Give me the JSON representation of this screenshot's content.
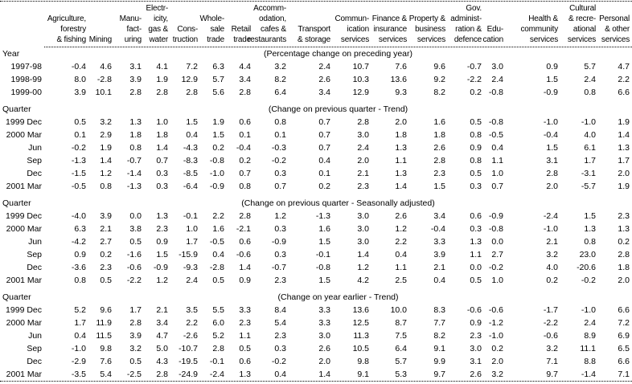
{
  "colors": {
    "text": "#000000",
    "background": "#ffffff"
  },
  "table": {
    "columns": [
      {
        "id": "period",
        "header_lines": []
      },
      {
        "id": "agriculture-forestry-fishing",
        "header_lines": [
          "Agriculture,",
          "forestry",
          "& fishing"
        ]
      },
      {
        "id": "mining",
        "header_lines": [
          "Mining"
        ]
      },
      {
        "id": "manufacturing",
        "header_lines": [
          "Manu-",
          "fact-",
          "uring"
        ]
      },
      {
        "id": "electricity-gas-water",
        "header_lines": [
          "Electr-",
          "icity,",
          "gas &",
          "water"
        ]
      },
      {
        "id": "construction",
        "header_lines": [
          "Cons-",
          "truction"
        ]
      },
      {
        "id": "wholesale-trade",
        "header_lines": [
          "Whole-",
          "sale",
          "trade"
        ]
      },
      {
        "id": "retail-trade",
        "header_lines": [
          "Retail",
          "trade"
        ]
      },
      {
        "id": "accommodation-cafes-restaurants",
        "header_lines": [
          "Accomm-",
          "odation,",
          "cafes &",
          "restaurants"
        ]
      },
      {
        "id": "transport-storage",
        "header_lines": [
          "Transport",
          "& storage"
        ]
      },
      {
        "id": "communication-services",
        "header_lines": [
          "Commun-",
          "ication",
          "services"
        ]
      },
      {
        "id": "finance-insurance-services",
        "header_lines": [
          "Finance &",
          "insurance",
          "services"
        ]
      },
      {
        "id": "property-business-services",
        "header_lines": [
          "Property &",
          "business",
          "services"
        ]
      },
      {
        "id": "gov-administration-defence",
        "header_lines": [
          "Gov.",
          "administ-",
          "ration &",
          "defence"
        ]
      },
      {
        "id": "education",
        "header_lines": [
          "Edu-",
          "cation"
        ]
      },
      {
        "id": "health-community-services",
        "header_lines": [
          "Health &",
          "community",
          "services"
        ]
      },
      {
        "id": "cultural-recreational-services",
        "header_lines": [
          "Cultural",
          "& recre-",
          "ational",
          "services"
        ]
      },
      {
        "id": "personal-other-services",
        "header_lines": [
          "Personal",
          "& other",
          "services"
        ]
      }
    ],
    "sections": [
      {
        "id": "percentage-change-preceding-year",
        "label": "Year",
        "caption": "(Percentage change on preceding year)",
        "rows": [
          {
            "period": "1997-98",
            "values": [
              "-0.4",
              "4.6",
              "3.1",
              "4.1",
              "7.2",
              "6.3",
              "4.4",
              "3.2",
              "2.4",
              "10.7",
              "7.6",
              "9.6",
              "-0.7",
              "3.0",
              "0.9",
              "5.7",
              "4.7"
            ]
          },
          {
            "period": "1998-99",
            "values": [
              "8.0",
              "-2.8",
              "3.9",
              "1.9",
              "12.9",
              "5.7",
              "3.4",
              "8.2",
              "2.6",
              "10.3",
              "13.6",
              "9.2",
              "-2.2",
              "2.4",
              "1.5",
              "2.4",
              "2.2"
            ]
          },
          {
            "period": "1999-00",
            "values": [
              "3.9",
              "10.1",
              "2.8",
              "2.8",
              "2.8",
              "5.6",
              "2.8",
              "6.4",
              "3.4",
              "12.9",
              "9.3",
              "8.2",
              "0.2",
              "-0.8",
              "-0.9",
              "0.8",
              "6.6"
            ]
          }
        ]
      },
      {
        "id": "change-previous-quarter-trend",
        "label": "Quarter",
        "caption": "(Change on previous quarter - Trend)",
        "rows": [
          {
            "period": "1999 Dec",
            "values": [
              "0.5",
              "3.2",
              "1.3",
              "1.0",
              "1.5",
              "1.9",
              "0.6",
              "0.8",
              "0.7",
              "2.8",
              "2.0",
              "1.6",
              "0.5",
              "-0.8",
              "-1.0",
              "-1.0",
              "1.9"
            ]
          },
          {
            "period": "2000 Mar",
            "values": [
              "0.1",
              "2.9",
              "1.8",
              "1.8",
              "0.4",
              "1.5",
              "0.1",
              "0.1",
              "0.7",
              "3.0",
              "1.8",
              "1.8",
              "0.8",
              "-0.5",
              "-0.4",
              "4.0",
              "1.4"
            ]
          },
          {
            "period": "Jun",
            "values": [
              "-0.2",
              "1.9",
              "0.8",
              "1.4",
              "-4.3",
              "0.2",
              "-0.4",
              "-0.3",
              "0.7",
              "2.4",
              "1.3",
              "2.6",
              "0.9",
              "0.4",
              "1.5",
              "6.1",
              "1.3"
            ]
          },
          {
            "period": "Sep",
            "values": [
              "-1.3",
              "1.4",
              "-0.7",
              "0.7",
              "-8.3",
              "-0.8",
              "0.2",
              "-0.2",
              "0.4",
              "2.0",
              "1.1",
              "2.8",
              "0.8",
              "1.1",
              "3.1",
              "1.7",
              "1.7"
            ]
          },
          {
            "period": "Dec",
            "values": [
              "-1.5",
              "1.2",
              "-1.4",
              "0.3",
              "-8.5",
              "-1.0",
              "0.7",
              "0.3",
              "0.1",
              "2.1",
              "1.3",
              "2.3",
              "0.5",
              "1.0",
              "2.8",
              "-3.1",
              "2.0"
            ]
          },
          {
            "period": "2001 Mar",
            "values": [
              "-0.5",
              "0.8",
              "-1.3",
              "0.3",
              "-6.4",
              "-0.9",
              "0.8",
              "0.7",
              "0.2",
              "2.3",
              "1.4",
              "1.5",
              "0.3",
              "0.7",
              "2.0",
              "-5.7",
              "1.9"
            ]
          }
        ]
      },
      {
        "id": "change-previous-quarter-seasonally-adjusted",
        "label": "Quarter",
        "caption": "(Change on previous quarter - Seasonally adjusted)",
        "rows": [
          {
            "period": "1999 Dec",
            "values": [
              "-4.0",
              "3.9",
              "0.0",
              "1.3",
              "-0.1",
              "2.2",
              "2.8",
              "1.2",
              "-1.3",
              "3.0",
              "2.6",
              "3.4",
              "0.6",
              "-0.9",
              "-2.4",
              "1.5",
              "2.3"
            ]
          },
          {
            "period": "2000 Mar",
            "values": [
              "6.3",
              "2.1",
              "3.8",
              "2.3",
              "1.0",
              "1.6",
              "-2.1",
              "0.3",
              "1.6",
              "3.0",
              "1.2",
              "-0.4",
              "0.3",
              "-0.8",
              "-1.0",
              "1.3",
              "1.3"
            ]
          },
          {
            "period": "Jun",
            "values": [
              "-4.2",
              "2.7",
              "0.5",
              "0.9",
              "1.7",
              "-0.5",
              "0.6",
              "-0.9",
              "1.5",
              "3.0",
              "2.2",
              "3.3",
              "1.3",
              "0.0",
              "2.1",
              "0.8",
              "0.2"
            ]
          },
          {
            "period": "Sep",
            "values": [
              "0.9",
              "0.2",
              "-1.6",
              "1.5",
              "-15.9",
              "0.4",
              "-0.6",
              "0.3",
              "-0.1",
              "1.4",
              "0.4",
              "3.9",
              "1.1",
              "2.7",
              "3.2",
              "23.0",
              "2.8"
            ]
          },
          {
            "period": "Dec",
            "values": [
              "-3.6",
              "2.3",
              "-0.6",
              "-0.9",
              "-9.3",
              "-2.8",
              "1.4",
              "-0.7",
              "-0.8",
              "1.2",
              "1.1",
              "2.1",
              "0.0",
              "-0.2",
              "4.0",
              "-20.6",
              "1.8"
            ]
          },
          {
            "period": "2001 Mar",
            "values": [
              "0.8",
              "0.5",
              "-2.2",
              "1.2",
              "2.4",
              "0.5",
              "0.9",
              "2.3",
              "1.5",
              "4.2",
              "2.5",
              "0.4",
              "0.5",
              "1.0",
              "0.2",
              "-0.2",
              "2.0"
            ]
          }
        ]
      },
      {
        "id": "change-year-earlier-trend",
        "label": "Quarter",
        "caption": "(Change on year earlier - Trend)",
        "rows": [
          {
            "period": "1999 Dec",
            "values": [
              "5.2",
              "9.6",
              "1.7",
              "2.1",
              "3.5",
              "5.5",
              "3.3",
              "8.4",
              "3.3",
              "13.6",
              "10.0",
              "8.3",
              "-0.6",
              "-0.6",
              "-1.7",
              "-1.0",
              "6.6"
            ]
          },
          {
            "period": "2000 Mar",
            "values": [
              "1.7",
              "11.9",
              "2.8",
              "3.4",
              "2.2",
              "6.0",
              "2.3",
              "5.4",
              "3.3",
              "12.5",
              "8.7",
              "7.7",
              "0.9",
              "-1.2",
              "-2.2",
              "2.4",
              "7.2"
            ]
          },
          {
            "period": "Jun",
            "values": [
              "0.4",
              "11.5",
              "3.9",
              "4.7",
              "-2.6",
              "5.2",
              "1.1",
              "2.3",
              "3.0",
              "11.3",
              "7.5",
              "8.2",
              "2.3",
              "-1.0",
              "-0.6",
              "8.9",
              "6.9"
            ]
          },
          {
            "period": "Sep",
            "values": [
              "-1.0",
              "9.8",
              "3.2",
              "5.0",
              "-10.7",
              "2.8",
              "0.5",
              "0.3",
              "2.6",
              "10.5",
              "6.4",
              "9.1",
              "3.0",
              "0.2",
              "3.2",
              "11.1",
              "6.5"
            ]
          },
          {
            "period": "Dec",
            "values": [
              "-2.9",
              "7.6",
              "0.5",
              "4.3",
              "-19.5",
              "-0.1",
              "0.6",
              "-0.2",
              "2.0",
              "9.8",
              "5.7",
              "9.9",
              "3.1",
              "2.0",
              "7.1",
              "8.8",
              "6.6"
            ]
          },
          {
            "period": "2001 Mar",
            "values": [
              "-3.5",
              "5.4",
              "-2.5",
              "2.8",
              "-24.9",
              "-2.4",
              "1.3",
              "0.4",
              "1.4",
              "9.1",
              "5.3",
              "9.7",
              "2.6",
              "3.2",
              "9.7",
              "-1.4",
              "7.1"
            ]
          }
        ]
      }
    ]
  }
}
